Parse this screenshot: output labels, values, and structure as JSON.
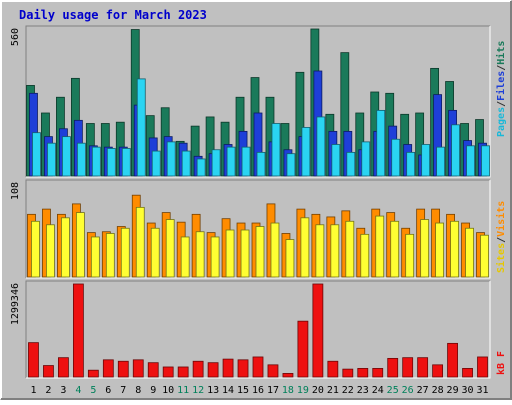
{
  "chart_data": {
    "type": "bar",
    "title": "Daily usage for March 2023",
    "categories": [
      "1",
      "2",
      "3",
      "4",
      "5",
      "6",
      "7",
      "8",
      "9",
      "10",
      "11",
      "12",
      "13",
      "14",
      "15",
      "16",
      "17",
      "18",
      "19",
      "20",
      "21",
      "22",
      "23",
      "24",
      "25",
      "26",
      "27",
      "28",
      "29",
      "30",
      "31"
    ],
    "weekend_days": [
      "4",
      "5",
      "11",
      "12",
      "18",
      "19",
      "25",
      "26"
    ],
    "panels": [
      {
        "id": "hits",
        "max_label": "560",
        "ylim": [
          0,
          560
        ],
        "series": [
          {
            "name": "Hits",
            "color": "#1a7a5a",
            "values": [
              345,
              240,
              300,
              372,
              200,
              200,
              205,
              558,
              230,
              260,
              132,
              190,
              225,
              205,
              300,
              375,
              300,
              200,
              395,
              560,
              235,
              470,
              240,
              320,
              315,
              235,
              240,
              410,
              360,
              200,
              215
            ]
          },
          {
            "name": "Files",
            "color": "#1e3fd8",
            "values": [
              315,
              150,
              180,
              212,
              115,
              110,
              110,
              270,
              145,
              150,
              125,
              75,
              85,
              120,
              170,
              240,
              130,
              100,
              150,
              400,
              170,
              170,
              100,
              170,
              190,
              120,
              80,
              310,
              250,
              135,
              125
            ]
          },
          {
            "name": "Pages",
            "color": "#2ad4f2",
            "values": [
              165,
              125,
              150,
              125,
              110,
              105,
              105,
              370,
              95,
              130,
              95,
              65,
              100,
              110,
              110,
              90,
              200,
              85,
              185,
              225,
              120,
              90,
              130,
              250,
              140,
              90,
              120,
              110,
              195,
              115,
              115
            ]
          }
        ]
      },
      {
        "id": "visits",
        "max_label": "108",
        "ylim": [
          0,
          108
        ],
        "series": [
          {
            "name": "Visits",
            "color": "#ff8c00",
            "values": [
              72,
              78,
              72,
              84,
              51,
              52,
              58,
              94,
              62,
              74,
              63,
              72,
              51,
              67,
              62,
              62,
              84,
              50,
              78,
              72,
              69,
              76,
              56,
              78,
              74,
              56,
              78,
              78,
              72,
              62,
              51
            ]
          },
          {
            "name": "Sites",
            "color": "#ffff33",
            "values": [
              64,
              60,
              68,
              74,
              46,
              50,
              56,
              80,
              56,
              66,
              46,
              52,
              46,
              54,
              54,
              58,
              62,
              43,
              68,
              60,
              60,
              64,
              49,
              70,
              64,
              49,
              66,
              62,
              64,
              56,
              48
            ]
          }
        ]
      },
      {
        "id": "kbytes",
        "max_label": "1299346",
        "ylim": [
          0,
          1299346
        ],
        "series": [
          {
            "name": "kB F",
            "color": "#ee1010",
            "values": [
              480000,
              160000,
              270000,
              1299346,
              95000,
              240000,
              220000,
              240000,
              200000,
              140000,
              140000,
              220000,
              200000,
              250000,
              240000,
              280000,
              170000,
              50000,
              780000,
              1299346,
              220000,
              110000,
              120000,
              120000,
              260000,
              270000,
              270000,
              170000,
              470000,
              120000,
              280000
            ]
          }
        ]
      }
    ],
    "axis_labels": {
      "right_top": [
        {
          "text": "Pages",
          "color": "#1ab8d8"
        },
        {
          "text": "/",
          "color": "#333333"
        },
        {
          "text": "Files",
          "color": "#1e3fd8"
        },
        {
          "text": "/",
          "color": "#333333"
        },
        {
          "text": "Hits",
          "color": "#1a7a5a"
        }
      ],
      "right_middle": [
        {
          "text": "Sites",
          "color": "#e6c800"
        },
        {
          "text": "/",
          "color": "#333333"
        },
        {
          "text": "Visits",
          "color": "#ff8c00"
        }
      ],
      "right_bottom": [
        {
          "text": "kB F",
          "color": "#ee1010"
        }
      ]
    },
    "colors": {
      "background": "#c0c0c0",
      "panel": "#c0c0c0",
      "title": "#0000cc",
      "weekday_label": "#000000",
      "weekend_label": "#00805a"
    }
  }
}
